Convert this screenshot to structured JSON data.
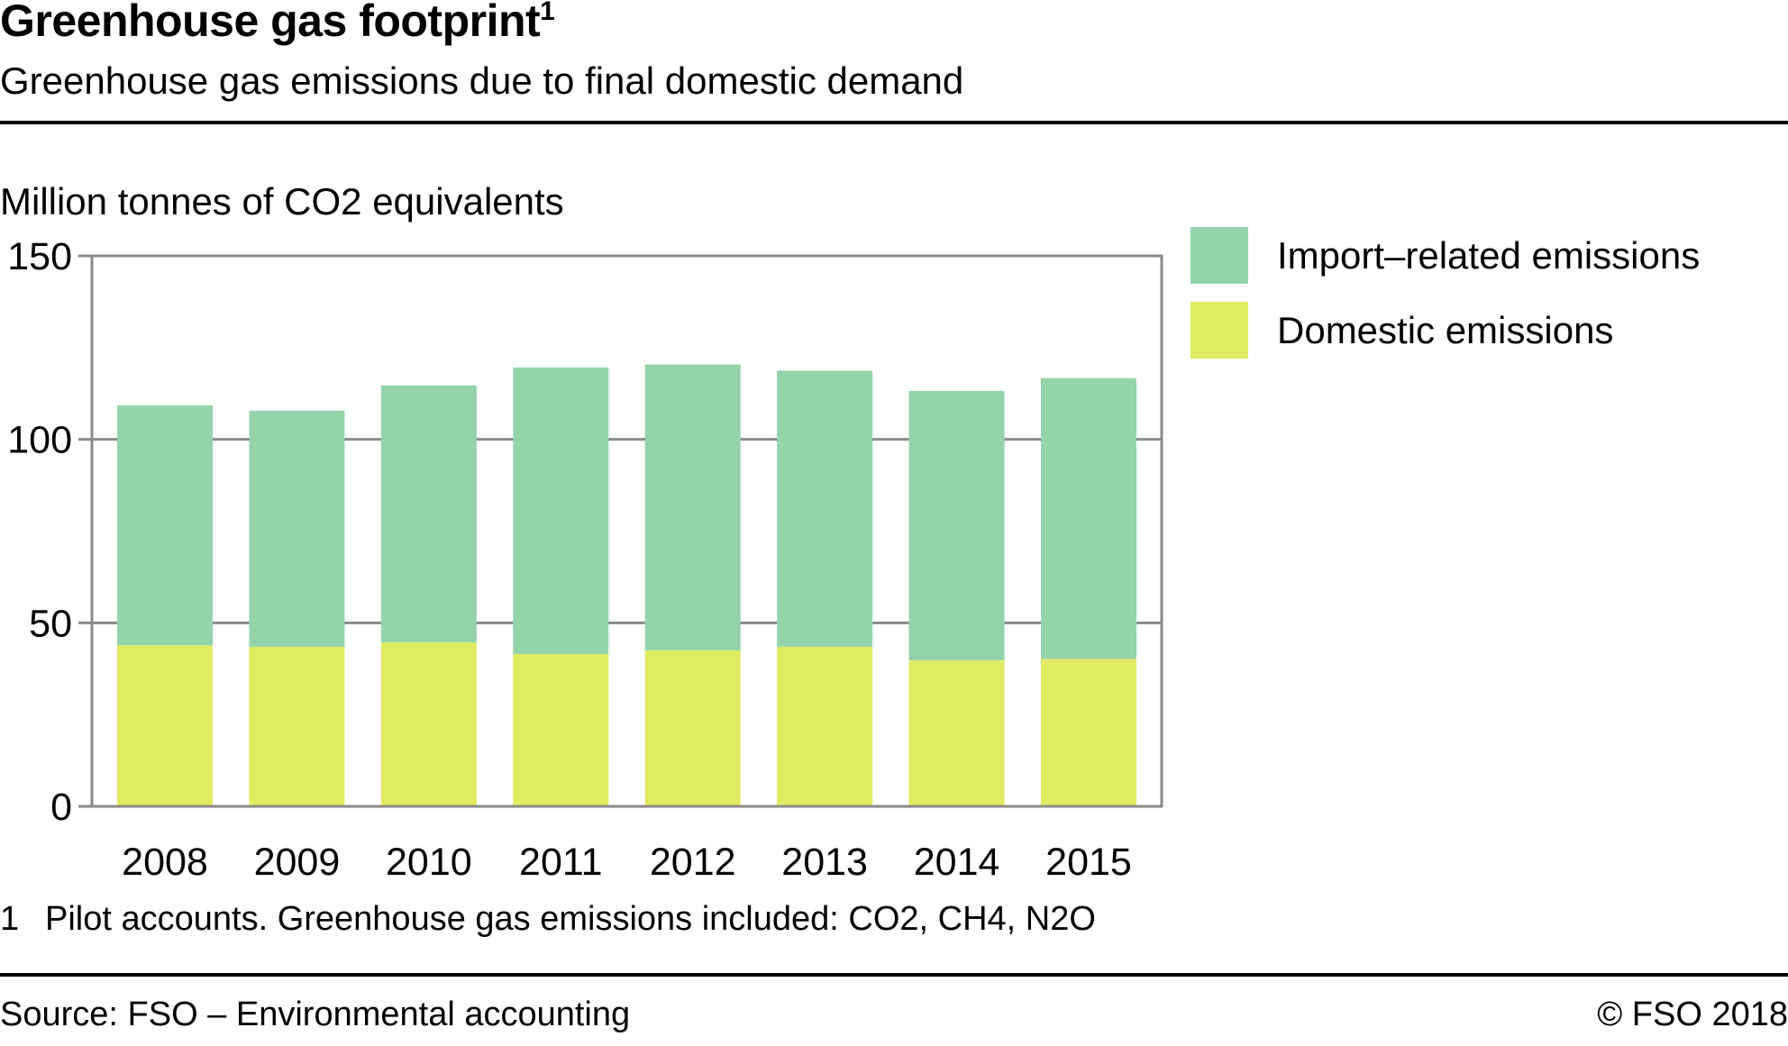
{
  "header": {
    "title": "Greenhouse gas footprint",
    "title_footnote_marker": "1",
    "subtitle": "Greenhouse gas emissions due to final domestic demand"
  },
  "chart_data": {
    "type": "bar",
    "stacked": true,
    "title": "Greenhouse gas footprint",
    "subtitle": "Greenhouse gas emissions due to final domestic demand",
    "ylabel": "Million tonnes of CO2 equivalents",
    "xlabel": "",
    "ylim": [
      0,
      150
    ],
    "yticks": [
      0,
      50,
      100,
      150
    ],
    "grid": true,
    "legend_position": "right",
    "categories": [
      "2008",
      "2009",
      "2010",
      "2011",
      "2012",
      "2013",
      "2014",
      "2015"
    ],
    "series": [
      {
        "name": "Domestic emissions",
        "color": "#e0ea62",
        "values": [
          43.9,
          43.5,
          44.7,
          41.5,
          42.5,
          43.5,
          39.8,
          40.2
        ]
      },
      {
        "name": "Import-related emissions",
        "color": "#93d4aa",
        "values": [
          65.4,
          64.3,
          70.0,
          78.1,
          77.9,
          75.2,
          73.4,
          76.5
        ]
      }
    ],
    "totals": [
      109.3,
      107.8,
      114.7,
      119.6,
      120.4,
      118.7,
      113.2,
      116.7
    ]
  },
  "legend": [
    {
      "label": "Import–related emissions",
      "color": "#93d4aa"
    },
    {
      "label": "Domestic emissions",
      "color": "#e0ea62"
    }
  ],
  "colors": {
    "axis": "#8a8a8a",
    "grid": "#8a8a8a",
    "rule": "#000000"
  },
  "footnote": {
    "number": "1",
    "text": "Pilot accounts. Greenhouse gas emissions included: CO2, CH4, N2O"
  },
  "footer": {
    "source": "Source: FSO – Environmental accounting",
    "copyright": "© FSO  2018"
  }
}
